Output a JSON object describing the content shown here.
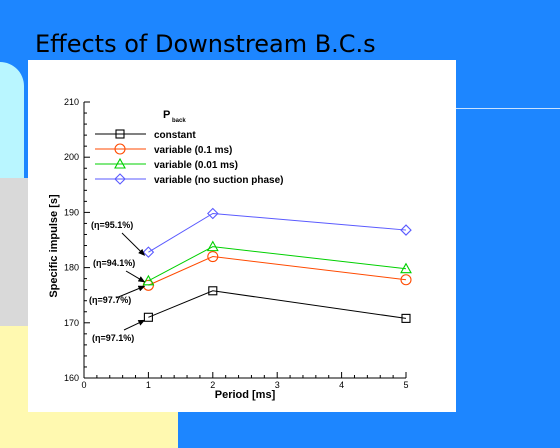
{
  "slide": {
    "title": "Effects of Downstream B.C.s"
  },
  "chart_data": {
    "type": "line",
    "xlabel": "Period [ms]",
    "ylabel": "Specific impulse [s]",
    "xlim": [
      0,
      5
    ],
    "ylim": [
      160,
      210
    ],
    "xticks": [
      0,
      1,
      2,
      3,
      4,
      5
    ],
    "yticks": [
      160,
      170,
      180,
      190,
      200,
      210
    ],
    "grid": false,
    "legend_position": "top-left",
    "legend_title": {
      "main": "P",
      "sub": "back"
    },
    "series": [
      {
        "name": "constant",
        "marker": "square",
        "color": "#000000",
        "x": [
          1,
          2,
          5
        ],
        "y": [
          171,
          175.8,
          170.8
        ]
      },
      {
        "name": "variable (0.1 ms)",
        "marker": "circle",
        "color": "#ff4a00",
        "x": [
          1,
          2,
          5
        ],
        "y": [
          176.8,
          182,
          177.8
        ]
      },
      {
        "name": "variable (0.01 ms)",
        "marker": "triangle",
        "color": "#00d000",
        "x": [
          1,
          2,
          5
        ],
        "y": [
          177.6,
          183.8,
          179.8
        ]
      },
      {
        "name": "variable (no suction phase)",
        "marker": "diamond",
        "color": "#5a5aff",
        "x": [
          1,
          2,
          5
        ],
        "y": [
          182.8,
          189.8,
          186.8
        ]
      }
    ],
    "annotations": [
      {
        "text": "(η=95.1%)",
        "target": [
          1,
          182.8
        ]
      },
      {
        "text": "(η=94.1%)",
        "target": [
          1,
          177.6
        ]
      },
      {
        "text": "(η=97.7%)",
        "target": [
          1,
          176.8
        ]
      },
      {
        "text": "(η=97.1%)",
        "target": [
          1,
          171
        ]
      }
    ]
  }
}
